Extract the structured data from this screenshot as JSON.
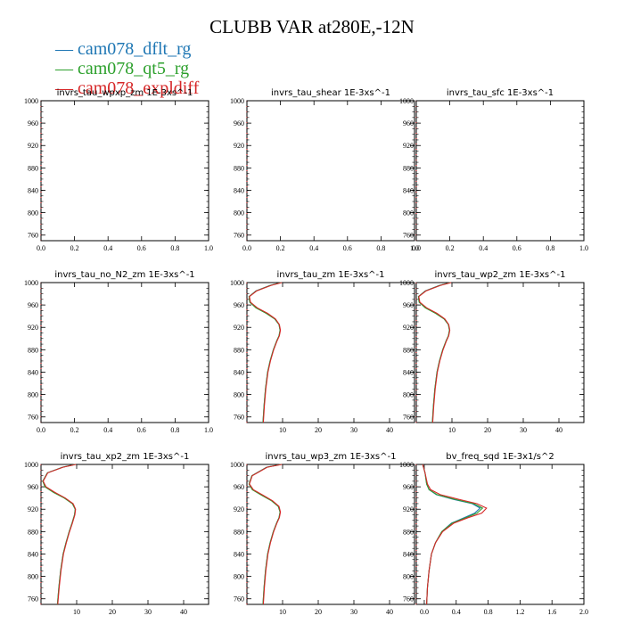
{
  "title": "CLUBB VAR at280E,-12N",
  "legend": [
    {
      "label": "cam078_dflt_rg",
      "color": "#1f77b4"
    },
    {
      "label": "cam078_qt5_rg",
      "color": "#2ca02c"
    },
    {
      "label": "cam078_expldiff",
      "color": "#d62728"
    }
  ],
  "chart_data": [
    {
      "type": "line",
      "title": "invrs_tau_wpxp_zm   1E-3xs^-1",
      "xlim": [
        0,
        1
      ],
      "xticks": [
        0.0,
        0.2,
        0.4,
        0.6,
        0.8,
        1.0
      ],
      "xdecimals": 1,
      "ylim": [
        1000,
        750
      ],
      "yticks": [
        760,
        800,
        840,
        880,
        920,
        960,
        1000
      ],
      "series": []
    },
    {
      "type": "line",
      "title": "invrs_tau_shear   1E-3xs^-1",
      "xlim": [
        0,
        1
      ],
      "xticks": [
        0.0,
        0.2,
        0.4,
        0.6,
        0.8,
        1.0
      ],
      "xdecimals": 1,
      "ylim": [
        1000,
        750
      ],
      "yticks": [
        760,
        800,
        840,
        880,
        920,
        960,
        1000
      ],
      "series": []
    },
    {
      "type": "line",
      "title": "invrs_tau_sfc   1E-3xs^-1",
      "xlim": [
        0,
        1
      ],
      "xticks": [
        0.0,
        0.2,
        0.4,
        0.6,
        0.8,
        1.0
      ],
      "xdecimals": 1,
      "ylim": [
        1000,
        750
      ],
      "yticks": [
        760,
        800,
        840,
        880,
        920,
        960,
        1000
      ],
      "series": []
    },
    {
      "type": "line",
      "title": "invrs_tau_no_N2_zm   1E-3xs^-1",
      "xlim": [
        0,
        1
      ],
      "xticks": [
        0.0,
        0.2,
        0.4,
        0.6,
        0.8,
        1.0
      ],
      "xdecimals": 1,
      "ylim": [
        1000,
        750
      ],
      "yticks": [
        760,
        800,
        840,
        880,
        920,
        960,
        1000
      ],
      "series": []
    },
    {
      "type": "line",
      "title": "invrs_tau_zm   1E-3xs^-1",
      "xlim": [
        0,
        47
      ],
      "xticks": [
        10,
        20,
        30,
        40
      ],
      "xdecimals": 0,
      "ylim": [
        1000,
        750
      ],
      "yticks": [
        760,
        800,
        840,
        880,
        920,
        960,
        1000
      ],
      "series": [
        {
          "color": "#1f77b4",
          "x": [
            4.5,
            4.8,
            5.2,
            5.8,
            6.5,
            7.4,
            8.3,
            9.0,
            9.3,
            9.0,
            7.8,
            5.5,
            2.6,
            0.8,
            0.6,
            2.5,
            6.5,
            9.5
          ],
          "y": [
            750,
            780,
            810,
            840,
            860,
            880,
            895,
            905,
            915,
            925,
            935,
            945,
            955,
            965,
            975,
            985,
            995,
            1000
          ]
        },
        {
          "color": "#2ca02c",
          "x": [
            4.5,
            4.8,
            5.2,
            5.8,
            6.5,
            7.4,
            8.3,
            9.0,
            9.3,
            9.0,
            7.8,
            5.4,
            2.5,
            0.8,
            0.6,
            2.6,
            6.6,
            9.6
          ],
          "y": [
            750,
            780,
            810,
            840,
            860,
            880,
            895,
            905,
            915,
            925,
            935,
            945,
            955,
            965,
            975,
            985,
            995,
            1000
          ]
        },
        {
          "color": "#d62728",
          "x": [
            4.6,
            4.9,
            5.3,
            5.9,
            6.6,
            7.5,
            8.4,
            9.1,
            9.4,
            9.1,
            8.0,
            5.8,
            2.9,
            1.0,
            0.7,
            2.7,
            6.8,
            9.8
          ],
          "y": [
            750,
            780,
            810,
            840,
            860,
            880,
            895,
            905,
            915,
            925,
            935,
            945,
            955,
            965,
            975,
            985,
            995,
            1000
          ]
        }
      ]
    },
    {
      "type": "line",
      "title": "invrs_tau_wp2_zm   1E-3xs^-1",
      "xlim": [
        0,
        47
      ],
      "xticks": [
        10,
        20,
        30,
        40
      ],
      "xdecimals": 0,
      "ylim": [
        1000,
        750
      ],
      "yticks": [
        760,
        800,
        840,
        880,
        920,
        960,
        1000
      ],
      "series": [
        {
          "color": "#1f77b4",
          "x": [
            4.5,
            4.8,
            5.2,
            5.8,
            6.5,
            7.4,
            8.3,
            9.0,
            9.3,
            9.0,
            7.8,
            5.5,
            2.6,
            0.8,
            0.6,
            2.5,
            6.5,
            9.5
          ],
          "y": [
            750,
            780,
            810,
            840,
            860,
            880,
            895,
            905,
            915,
            925,
            935,
            945,
            955,
            965,
            975,
            985,
            995,
            1000
          ]
        },
        {
          "color": "#2ca02c",
          "x": [
            4.5,
            4.8,
            5.2,
            5.8,
            6.5,
            7.4,
            8.3,
            9.0,
            9.3,
            9.0,
            7.8,
            5.4,
            2.5,
            0.8,
            0.6,
            2.6,
            6.6,
            9.6
          ],
          "y": [
            750,
            780,
            810,
            840,
            860,
            880,
            895,
            905,
            915,
            925,
            935,
            945,
            955,
            965,
            975,
            985,
            995,
            1000
          ]
        },
        {
          "color": "#d62728",
          "x": [
            4.6,
            4.9,
            5.3,
            5.9,
            6.6,
            7.5,
            8.4,
            9.1,
            9.4,
            9.1,
            8.0,
            5.8,
            2.9,
            1.0,
            0.7,
            2.7,
            6.8,
            9.8
          ],
          "y": [
            750,
            780,
            810,
            840,
            860,
            880,
            895,
            905,
            915,
            925,
            935,
            945,
            955,
            965,
            975,
            985,
            995,
            1000
          ]
        }
      ]
    },
    {
      "type": "line",
      "title": "invrs_tau_xp2_zm   1E-3xs^-1",
      "xlim": [
        0,
        47
      ],
      "xticks": [
        10,
        20,
        30,
        40
      ],
      "xdecimals": 0,
      "ylim": [
        1000,
        750
      ],
      "yticks": [
        760,
        800,
        840,
        880,
        920,
        960,
        1000
      ],
      "series": [
        {
          "color": "#1f77b4",
          "x": [
            4.6,
            5.0,
            5.5,
            6.2,
            7.0,
            7.9,
            8.7,
            9.4,
            9.6,
            8.8,
            6.6,
            3.6,
            1.2,
            0.5,
            1.8,
            6.0,
            9.5
          ],
          "y": [
            750,
            780,
            810,
            840,
            860,
            880,
            895,
            910,
            920,
            930,
            940,
            950,
            960,
            970,
            985,
            995,
            1000
          ]
        },
        {
          "color": "#2ca02c",
          "x": [
            4.6,
            5.0,
            5.5,
            6.2,
            7.0,
            7.9,
            8.7,
            9.4,
            9.6,
            8.8,
            6.5,
            3.5,
            1.1,
            0.5,
            1.8,
            6.1,
            9.6
          ],
          "y": [
            750,
            780,
            810,
            840,
            860,
            880,
            895,
            910,
            920,
            930,
            940,
            950,
            960,
            970,
            985,
            995,
            1000
          ]
        },
        {
          "color": "#d62728",
          "x": [
            4.7,
            5.1,
            5.6,
            6.3,
            7.1,
            8.0,
            8.8,
            9.5,
            9.7,
            9.0,
            6.8,
            3.9,
            1.4,
            0.6,
            1.9,
            6.2,
            9.8
          ],
          "y": [
            750,
            780,
            810,
            840,
            860,
            880,
            895,
            910,
            920,
            930,
            940,
            950,
            960,
            970,
            985,
            995,
            1000
          ]
        }
      ]
    },
    {
      "type": "line",
      "title": "invrs_tau_wp3_zm   1E-3xs^-1",
      "xlim": [
        0,
        47
      ],
      "xticks": [
        10,
        20,
        30,
        40
      ],
      "xdecimals": 0,
      "ylim": [
        1000,
        750
      ],
      "yticks": [
        760,
        800,
        840,
        880,
        920,
        960,
        1000
      ],
      "series": [
        {
          "color": "#1f77b4",
          "x": [
            4.5,
            4.8,
            5.2,
            5.8,
            6.5,
            7.4,
            8.3,
            9.0,
            9.3,
            8.8,
            7.0,
            4.2,
            1.6,
            0.6,
            1.4,
            5.5,
            9.5
          ],
          "y": [
            750,
            780,
            810,
            840,
            860,
            880,
            895,
            905,
            915,
            925,
            935,
            945,
            955,
            965,
            980,
            995,
            1000
          ]
        },
        {
          "color": "#2ca02c",
          "x": [
            4.5,
            4.8,
            5.2,
            5.8,
            6.5,
            7.4,
            8.3,
            9.0,
            9.3,
            8.8,
            6.9,
            4.1,
            1.5,
            0.6,
            1.4,
            5.6,
            9.6
          ],
          "y": [
            750,
            780,
            810,
            840,
            860,
            880,
            895,
            905,
            915,
            925,
            935,
            945,
            955,
            965,
            980,
            995,
            1000
          ]
        },
        {
          "color": "#d62728",
          "x": [
            4.6,
            4.9,
            5.3,
            5.9,
            6.6,
            7.5,
            8.4,
            9.1,
            9.4,
            9.0,
            7.2,
            4.5,
            1.8,
            0.7,
            1.5,
            5.7,
            9.8
          ],
          "y": [
            750,
            780,
            810,
            840,
            860,
            880,
            895,
            905,
            915,
            925,
            935,
            945,
            955,
            965,
            980,
            995,
            1000
          ]
        }
      ]
    },
    {
      "type": "line",
      "title": "bv_freq_sqd   1E-3x1/s^2",
      "xlim": [
        -0.1,
        2.0
      ],
      "xticks": [
        0.0,
        0.4,
        0.8,
        1.2,
        1.6,
        2.0
      ],
      "xdecimals": 1,
      "ylim": [
        1000,
        750
      ],
      "yticks": [
        760,
        800,
        840,
        880,
        920,
        960,
        1000
      ],
      "series": [
        {
          "color": "#1f77b4",
          "x": [
            0.03,
            0.04,
            0.06,
            0.09,
            0.14,
            0.22,
            0.34,
            0.5,
            0.63,
            0.7,
            0.6,
            0.35,
            0.15,
            0.06,
            0.03,
            0.01,
            -0.02
          ],
          "y": [
            750,
            780,
            810,
            840,
            860,
            880,
            895,
            905,
            913,
            922,
            930,
            938,
            946,
            955,
            965,
            985,
            1000
          ]
        },
        {
          "color": "#2ca02c",
          "x": [
            0.03,
            0.04,
            0.06,
            0.09,
            0.14,
            0.22,
            0.35,
            0.52,
            0.66,
            0.73,
            0.62,
            0.37,
            0.16,
            0.06,
            0.03,
            0.01,
            -0.02
          ],
          "y": [
            750,
            780,
            810,
            840,
            860,
            880,
            895,
            905,
            913,
            922,
            930,
            938,
            946,
            955,
            965,
            985,
            1000
          ]
        },
        {
          "color": "#d62728",
          "x": [
            0.03,
            0.04,
            0.06,
            0.09,
            0.14,
            0.23,
            0.37,
            0.55,
            0.72,
            0.78,
            0.66,
            0.42,
            0.2,
            0.08,
            0.04,
            0.01,
            -0.02
          ],
          "y": [
            750,
            780,
            810,
            840,
            860,
            880,
            895,
            905,
            913,
            922,
            930,
            938,
            946,
            955,
            965,
            985,
            1000
          ]
        }
      ]
    }
  ]
}
